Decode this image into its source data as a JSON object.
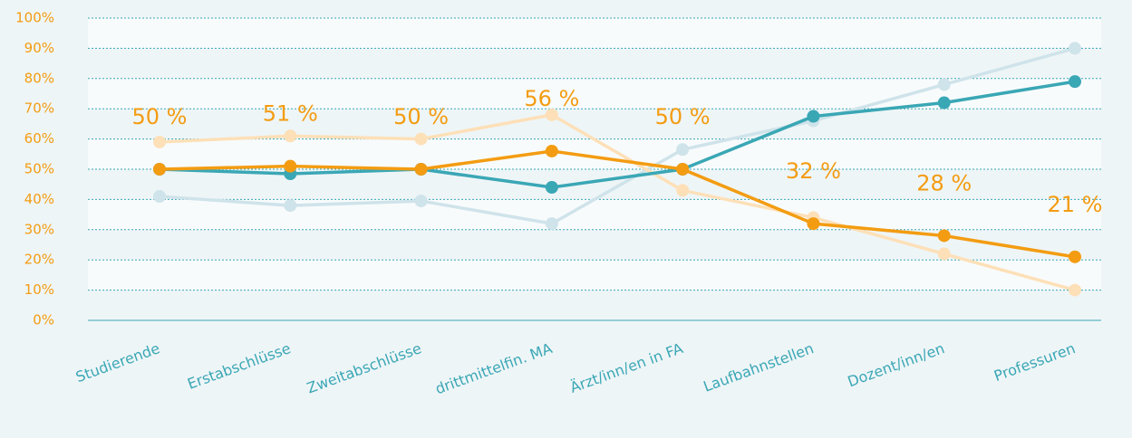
{
  "chart_data": {
    "type": "line",
    "categories": [
      "Studierende",
      "Erstabschlüsse",
      "Zweitabschlüsse",
      "drittmittelfin. MA",
      "Ärzt/inn/en in FA",
      "Laufbahnstellen",
      "Dozent/inn/en",
      "Professuren"
    ],
    "series": [
      {
        "color": "#cfe3ea",
        "values": [
          41,
          38,
          39.5,
          32,
          56.5,
          66,
          78,
          90
        ]
      },
      {
        "color": "#fde0b8",
        "values": [
          59,
          61,
          60,
          68,
          43,
          34,
          22,
          10
        ]
      },
      {
        "color": "#3aa7b5",
        "values": [
          50,
          48.5,
          50,
          44,
          50,
          67.5,
          72,
          79
        ]
      },
      {
        "color": "#f39c12",
        "values": [
          50,
          51,
          50,
          56,
          50,
          32,
          28,
          21
        ],
        "value_labels": [
          "50 %",
          "51 %",
          "50 %",
          "56 %",
          "50 %",
          "32 %",
          "28 %",
          "21 %"
        ]
      }
    ],
    "ylim": [
      0,
      100
    ],
    "yticks": [
      {
        "value": 0,
        "label": "0%"
      },
      {
        "value": 10,
        "label": "10%"
      },
      {
        "value": 20,
        "label": "20%"
      },
      {
        "value": 30,
        "label": "30%"
      },
      {
        "value": 40,
        "label": "40%"
      },
      {
        "value": 50,
        "label": "50%"
      },
      {
        "value": 60,
        "label": "60%"
      },
      {
        "value": 70,
        "label": "70%"
      },
      {
        "value": 80,
        "label": "80%"
      },
      {
        "value": 90,
        "label": "90%"
      },
      {
        "value": 100,
        "label": "100%"
      }
    ],
    "grid": true
  }
}
